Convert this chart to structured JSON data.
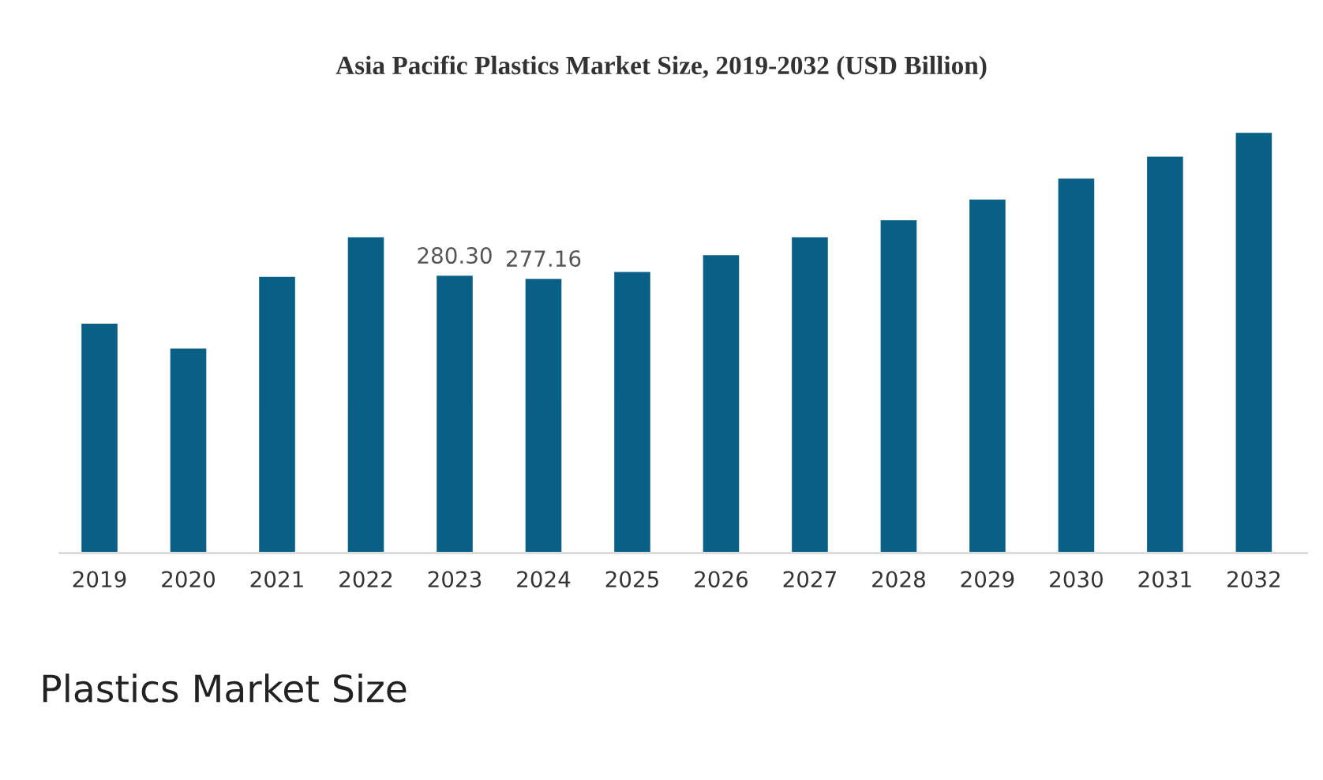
{
  "chart_data": {
    "type": "bar",
    "title": "Asia Pacific Plastics Market Size, 2019-2032 (USD Billion)",
    "categories": [
      "2019",
      "2020",
      "2021",
      "2022",
      "2023",
      "2024",
      "2025",
      "2026",
      "2027",
      "2028",
      "2029",
      "2030",
      "2031",
      "2032"
    ],
    "values": [
      232,
      207,
      279,
      319,
      280.3,
      277.16,
      284,
      301,
      319,
      336,
      357,
      378,
      400,
      424
    ],
    "value_labels": [
      null,
      null,
      null,
      null,
      "280.30",
      "277.16",
      null,
      null,
      null,
      null,
      null,
      null,
      null,
      null
    ],
    "color": "#0a5f86",
    "grid": false,
    "legend": false,
    "tick_labels": "x",
    "annotations": [
      "Plastics Market Size"
    ]
  }
}
